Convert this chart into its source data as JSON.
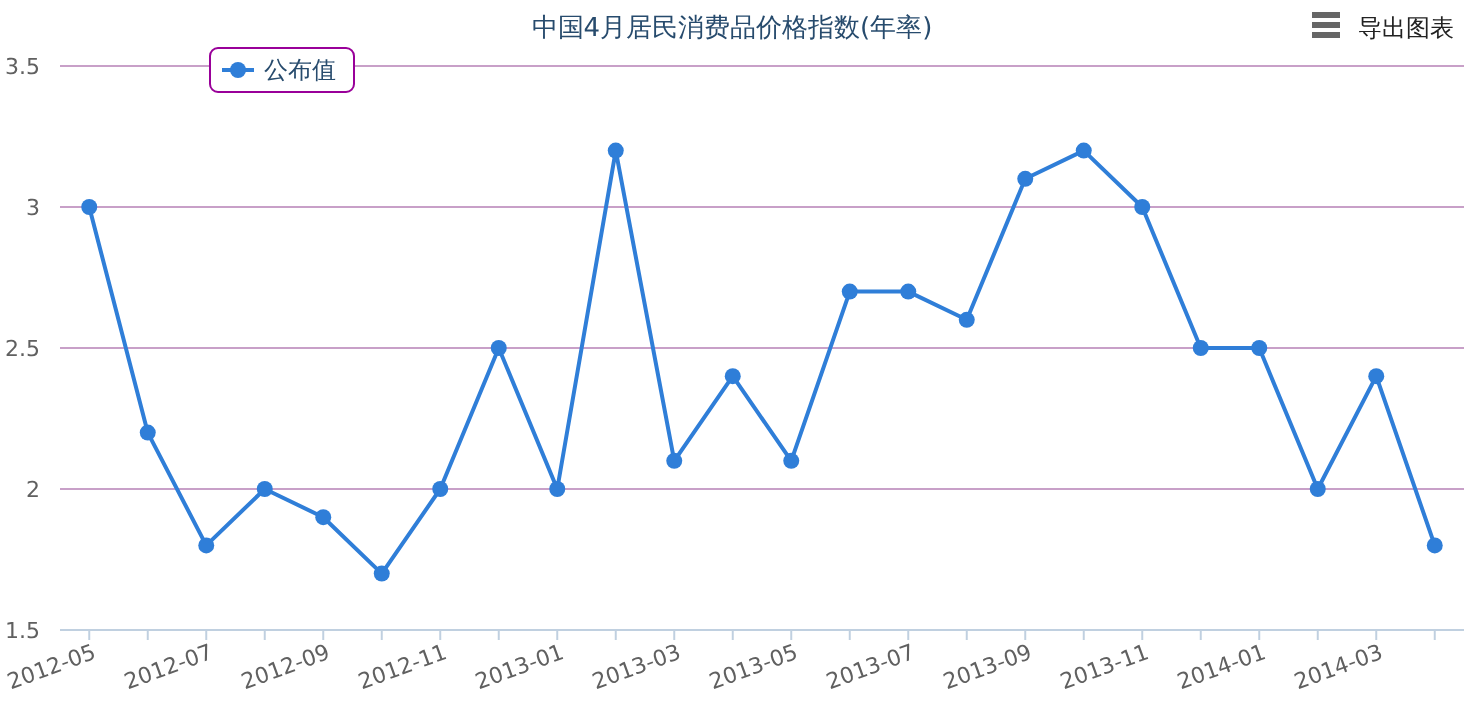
{
  "chart_data": {
    "type": "line",
    "title": "中国4月居民消费品价格指数(年率)",
    "categories": [
      "2012-05",
      null,
      "2012-07",
      null,
      "2012-09",
      null,
      "2012-11",
      null,
      "2013-01",
      null,
      "2013-03",
      null,
      "2013-05",
      null,
      "2013-07",
      null,
      "2013-09",
      null,
      "2013-11",
      null,
      "2014-01",
      null,
      "2014-03",
      null
    ],
    "series": [
      {
        "name": "公布值",
        "color": "#2f7ed8",
        "values": [
          3.0,
          2.2,
          1.8,
          2.0,
          1.9,
          1.7,
          2.0,
          2.5,
          2.0,
          3.2,
          2.1,
          2.4,
          2.1,
          2.7,
          2.7,
          2.6,
          3.1,
          3.2,
          3.0,
          2.5,
          2.5,
          2.0,
          2.4,
          1.8
        ]
      }
    ],
    "ylim": [
      1.5,
      3.5
    ],
    "yticks": [
      1.5,
      2,
      2.5,
      3,
      3.5
    ],
    "grid": "y",
    "legend": "top left",
    "marker": "circle",
    "line_style": "solid",
    "annotations": [
      "导出图表"
    ]
  }
}
